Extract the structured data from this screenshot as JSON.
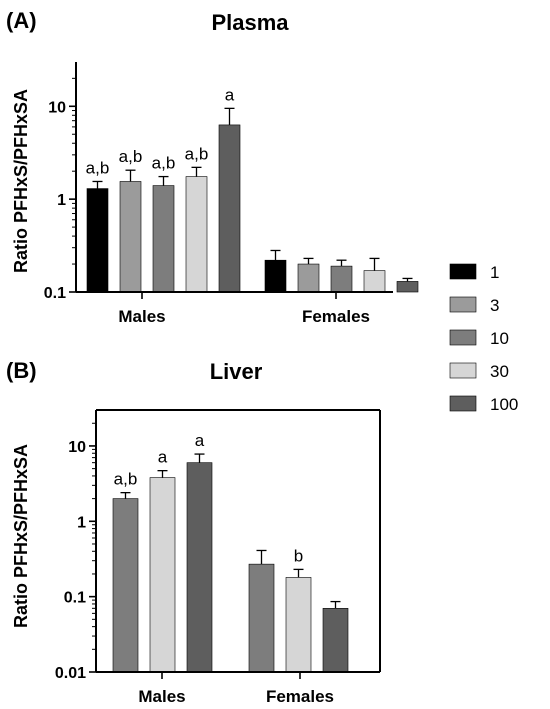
{
  "legend": {
    "entries": [
      {
        "label": "1",
        "color": "#000000"
      },
      {
        "label": "3",
        "color": "#9b9b9b"
      },
      {
        "label": "10",
        "color": "#7d7d7d"
      },
      {
        "label": "30",
        "color": "#d6d6d6"
      },
      {
        "label": "100",
        "color": "#5e5e5e"
      }
    ]
  },
  "chart_data": [
    {
      "type": "bar",
      "panel_label": "(A)",
      "title": "Plasma",
      "ylabel": "Ratio PFHxS/PFHxSA",
      "yscale": "log",
      "ylim": [
        0.1,
        30
      ],
      "yticks": [
        "0.1",
        "1",
        "10"
      ],
      "groups": [
        "Males",
        "Females"
      ],
      "series": [
        {
          "name": "1",
          "values": [
            1.3,
            0.22
          ],
          "errors": [
            1.55,
            0.28
          ],
          "annotations": [
            "a,b",
            ""
          ]
        },
        {
          "name": "3",
          "values": [
            1.55,
            0.2
          ],
          "errors": [
            2.05,
            0.23
          ],
          "annotations": [
            "a,b",
            ""
          ]
        },
        {
          "name": "10",
          "values": [
            1.4,
            0.19
          ],
          "errors": [
            1.75,
            0.22
          ],
          "annotations": [
            "a,b",
            ""
          ]
        },
        {
          "name": "30",
          "values": [
            1.75,
            0.17
          ],
          "errors": [
            2.2,
            0.23
          ],
          "annotations": [
            "a,b",
            ""
          ]
        },
        {
          "name": "100",
          "values": [
            6.3,
            0.13
          ],
          "errors": [
            9.5,
            0.14
          ],
          "annotations": [
            "a",
            ""
          ]
        }
      ]
    },
    {
      "type": "bar",
      "panel_label": "(B)",
      "title": "Liver",
      "ylabel": "Ratio PFHxS/PFHxSA",
      "yscale": "log",
      "ylim": [
        0.01,
        30
      ],
      "yticks": [
        "0.01",
        "0.1",
        "1",
        "10"
      ],
      "groups": [
        "Males",
        "Females"
      ],
      "series": [
        {
          "name": "10",
          "values": [
            2.0,
            0.27
          ],
          "errors": [
            2.4,
            0.41
          ],
          "annotations": [
            "a,b",
            ""
          ]
        },
        {
          "name": "30",
          "values": [
            3.8,
            0.18
          ],
          "errors": [
            4.7,
            0.23
          ],
          "annotations": [
            "a",
            "b"
          ]
        },
        {
          "name": "100",
          "values": [
            6.0,
            0.07
          ],
          "errors": [
            7.8,
            0.086
          ],
          "annotations": [
            "a",
            ""
          ]
        }
      ]
    }
  ]
}
